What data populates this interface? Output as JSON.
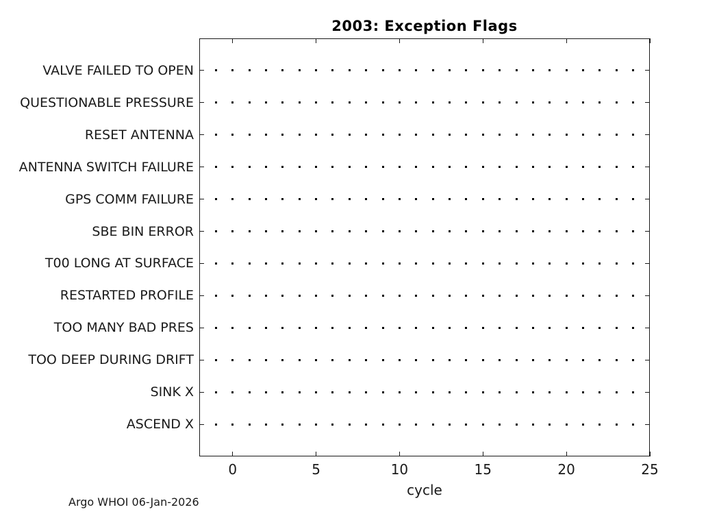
{
  "figure": {
    "title": "2003: Exception Flags",
    "xlabel": "cycle",
    "footer": "Argo WHOI 06-Jan-2026"
  },
  "colors": {
    "background": "#ffffff",
    "axis": "#1a1a1a",
    "text": "#1a1a1a",
    "marker": "#000000"
  },
  "chart_data": {
    "type": "scatter",
    "title": "2003: Exception Flags",
    "xlabel": "cycle",
    "ylabel": "",
    "categories_top_to_bottom": [
      "VALVE FAILED TO OPEN",
      "QUESTIONABLE PRESSURE",
      "RESET ANTENNA",
      "ANTENNA SWITCH FAILURE",
      "GPS COMM FAILURE",
      "SBE BIN ERROR",
      "T00 LONG AT SURFACE",
      "RESTARTED PROFILE",
      "TOO MANY BAD PRES",
      "TOO DEEP DURING DRIFT",
      "SINK X",
      "ASCEND X"
    ],
    "x_cycles": [
      -1,
      0,
      1,
      2,
      3,
      4,
      5,
      6,
      7,
      8,
      9,
      10,
      11,
      12,
      13,
      14,
      15,
      16,
      17,
      18,
      19,
      20,
      21,
      22,
      23,
      24
    ],
    "x_ticks": [
      0,
      5,
      10,
      15,
      20,
      25
    ],
    "x_tick_labels": [
      "0",
      "5",
      "10",
      "15",
      "20",
      "25"
    ],
    "xlim": [
      -2,
      25
    ],
    "ylim": [
      0,
      13
    ],
    "grid": false,
    "legend": null,
    "marker": "dot",
    "note": "Each category row shows one dot marker at every cycle from -1 to 24; all rows identical (no exception flags set). Box axes with inward ticks mirrored on top and right."
  }
}
